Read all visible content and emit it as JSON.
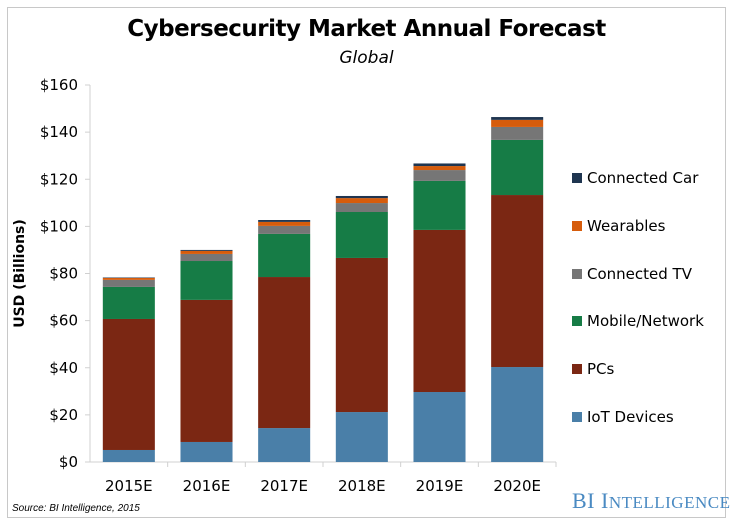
{
  "chart_data": {
    "type": "bar",
    "stacked": true,
    "title": "Cybersecurity Market Annual Forecast",
    "subtitle": "Global",
    "xlabel": "",
    "ylabel": "USD (Billions)",
    "ylim": [
      0,
      160
    ],
    "yticks": [
      0,
      20,
      40,
      60,
      80,
      100,
      120,
      140,
      160
    ],
    "ytick_labels": [
      "$0",
      "$20",
      "$40",
      "$60",
      "$80",
      "$100",
      "$120",
      "$140",
      "$160"
    ],
    "grid": false,
    "legend_position": "right",
    "categories": [
      "2015E",
      "2016E",
      "2017E",
      "2018E",
      "2019E",
      "2020E"
    ],
    "series": [
      {
        "name": "IoT Devices",
        "color": "#4a7fa8",
        "values": [
          5.1,
          8.5,
          14.4,
          21.2,
          29.7,
          40.3
        ]
      },
      {
        "name": "PCs",
        "color": "#7b2713",
        "values": [
          55.6,
          60.3,
          64.1,
          65.4,
          68.8,
          73.0
        ]
      },
      {
        "name": "Mobile/Network",
        "color": "#167c46",
        "values": [
          13.6,
          16.5,
          18.3,
          19.5,
          20.8,
          23.4
        ]
      },
      {
        "name": "Connected TV",
        "color": "#767676",
        "values": [
          3.0,
          3.0,
          3.4,
          3.8,
          4.6,
          5.5
        ]
      },
      {
        "name": "Wearables",
        "color": "#d65c0c",
        "values": [
          0.8,
          1.3,
          1.7,
          2.1,
          1.7,
          3.0
        ]
      },
      {
        "name": "Connected Car",
        "color": "#1f3550",
        "values": [
          0.2,
          0.4,
          0.8,
          0.9,
          1.1,
          1.2
        ]
      }
    ],
    "legend_order": [
      "Connected Car",
      "Wearables",
      "Connected TV",
      "Mobile/Network",
      "PCs",
      "IoT Devices"
    ]
  },
  "footer": {
    "source": "Source: BI Intelligence, 2015",
    "brand_initials": "BI",
    "brand_word_first": "I",
    "brand_word_rest": "NTELLIGENCE"
  }
}
